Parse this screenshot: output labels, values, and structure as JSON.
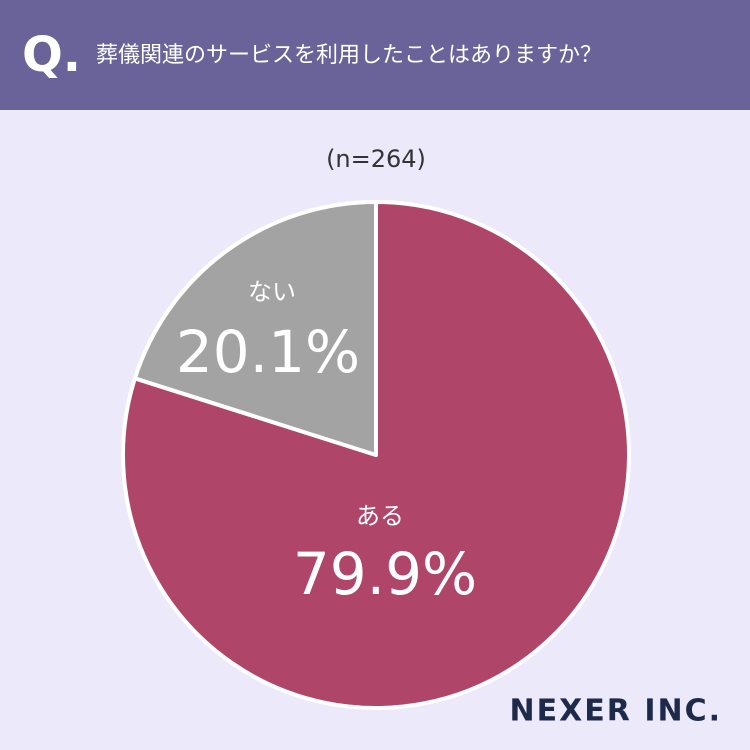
{
  "chart_data": {
    "type": "pie",
    "question_mark": "Q.",
    "title": "葬儀関連のサービスを利用したことはありますか？",
    "subtitle": "(n=264)",
    "categories": [
      "ある",
      "ない"
    ],
    "values": [
      79.9,
      20.1
    ],
    "value_labels": [
      "79.9%",
      "20.1%"
    ],
    "colors": [
      "#b0456a",
      "#a3a3a3"
    ],
    "brand": "NEXER INC."
  }
}
